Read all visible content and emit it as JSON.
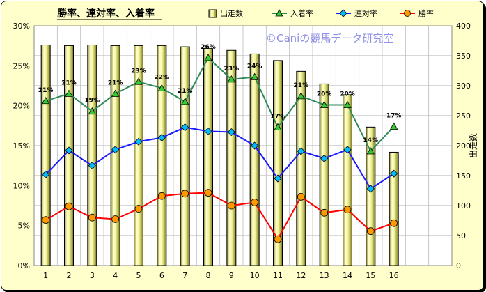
{
  "chart_data": {
    "type": "bar",
    "title": "勝率、連対率、入着率",
    "credit": "©Caniの競馬データ研究室",
    "categories": [
      "1",
      "2",
      "3",
      "4",
      "5",
      "6",
      "7",
      "8",
      "9",
      "10",
      "11",
      "12",
      "13",
      "14",
      "15",
      "16"
    ],
    "x_extra_ticks": [
      "",
      ""
    ],
    "y_left": {
      "ticks": [
        "0%",
        "5%",
        "10%",
        "15%",
        "20%",
        "25%",
        "30%"
      ],
      "min": 0,
      "max": 30
    },
    "y_right": {
      "label": "出走数",
      "ticks": [
        "0",
        "50",
        "100",
        "150",
        "200",
        "250",
        "300",
        "350",
        "400"
      ],
      "min": 0,
      "max": 400
    },
    "grid": true,
    "legend_position": "top",
    "bars": {
      "name": "出走数",
      "color": "#f0f0a0",
      "values": [
        368,
        367,
        368,
        367,
        367,
        367,
        365,
        362,
        359,
        353,
        342,
        324,
        303,
        285,
        231,
        189
      ]
    },
    "series": [
      {
        "name": "入着率",
        "color": "#2e8b57",
        "marker": "triangle",
        "marker_color": "#33cc33",
        "values": [
          20.6,
          21.5,
          19.3,
          21.5,
          23.0,
          22.2,
          20.5,
          26.0,
          23.3,
          23.6,
          17.3,
          21.2,
          20.1,
          20.1,
          14.3,
          17.4
        ],
        "labels": [
          "21%",
          "21%",
          "19%",
          "21%",
          "23%",
          "22%",
          "21%",
          "26%",
          "23%",
          "24%",
          "17%",
          "21%",
          "20%",
          "20%",
          "14%",
          "17%"
        ]
      },
      {
        "name": "連対率",
        "color": "#1a1aff",
        "marker": "diamond",
        "marker_color": "#00bbff",
        "values": [
          11.4,
          14.4,
          12.5,
          14.5,
          15.5,
          16.0,
          17.3,
          16.8,
          16.7,
          15.0,
          10.9,
          14.3,
          13.4,
          14.5,
          9.6,
          11.5
        ]
      },
      {
        "name": "勝率",
        "color": "#ff0000",
        "marker": "circle",
        "marker_color": "#ff9900",
        "values": [
          5.7,
          7.4,
          6.0,
          5.8,
          7.1,
          8.7,
          9.0,
          9.1,
          7.5,
          7.9,
          3.3,
          8.6,
          6.6,
          7.0,
          4.3,
          5.3
        ]
      }
    ]
  }
}
